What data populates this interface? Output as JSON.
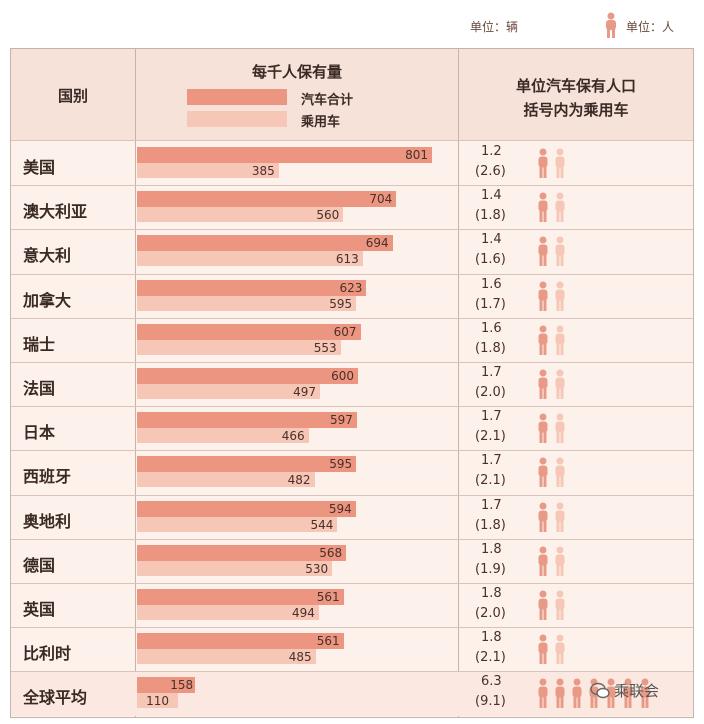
{
  "units": {
    "left": "单位：辆",
    "right": "单位：人"
  },
  "header": {
    "country": "国别",
    "per1000": "每千人保有量",
    "legend_total": "汽车合计",
    "legend_passenger": "乘用车",
    "people_line1": "单位汽车保有人口",
    "people_line2": "括号内为乘用车"
  },
  "colors": {
    "total": "#ec9682",
    "passenger": "#f6c6b6",
    "person": "#e89a86"
  },
  "watermark": "乘联会",
  "chart_data": {
    "type": "bar",
    "title": "每千人保有量",
    "categories": [
      "美国",
      "澳大利亚",
      "意大利",
      "加拿大",
      "瑞士",
      "法国",
      "日本",
      "西班牙",
      "奥地利",
      "德国",
      "英国",
      "比利时",
      "全球平均"
    ],
    "series": [
      {
        "name": "汽车合计",
        "values": [
          801,
          704,
          694,
          623,
          607,
          600,
          597,
          595,
          594,
          568,
          561,
          561,
          158
        ]
      },
      {
        "name": "乘用车",
        "values": [
          385,
          560,
          613,
          595,
          553,
          497,
          466,
          482,
          544,
          530,
          494,
          485,
          110
        ]
      }
    ],
    "people_per_vehicle": [
      1.2,
      1.4,
      1.4,
      1.6,
      1.6,
      1.7,
      1.7,
      1.7,
      1.7,
      1.8,
      1.8,
      1.8,
      6.3
    ],
    "people_per_passenger_car": [
      "(2.6)",
      "(1.8)",
      "(1.6)",
      "(1.7)",
      "(1.8)",
      "(2.0)",
      "(2.1)",
      "(2.1)",
      "(1.8)",
      "(1.9)",
      "(2.0)",
      "(2.1)",
      "(9.1)"
    ],
    "people_icons": [
      2,
      2,
      2,
      2,
      2,
      2,
      2,
      2,
      2,
      2,
      2,
      2,
      7
    ],
    "xlim": [
      0,
      850
    ]
  }
}
